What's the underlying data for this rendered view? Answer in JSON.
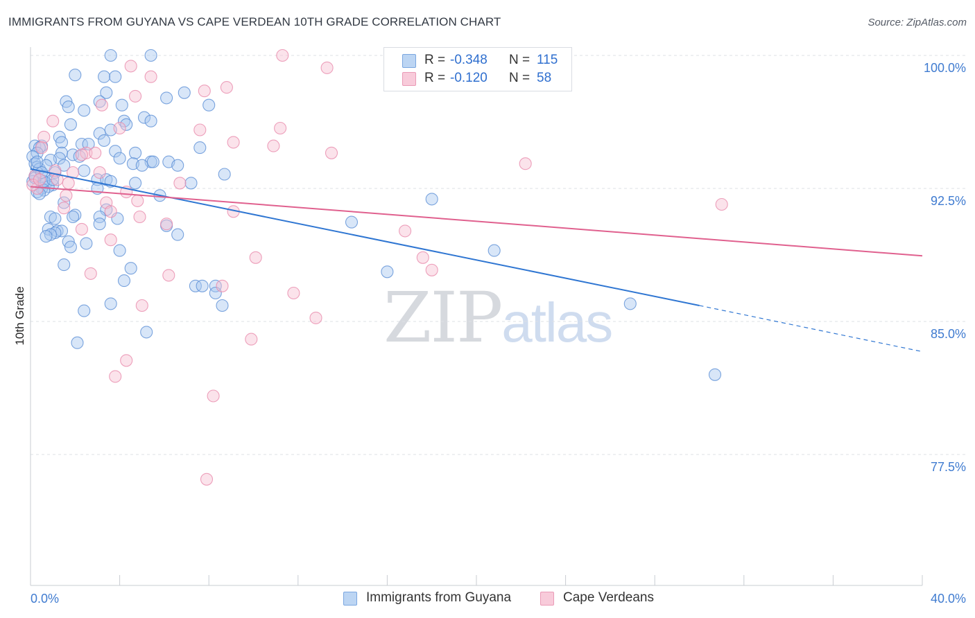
{
  "title": "IMMIGRANTS FROM GUYANA VS CAPE VERDEAN 10TH GRADE CORRELATION CHART",
  "source": "Source: ZipAtlas.com",
  "watermark": {
    "zip": "ZIP",
    "atlas": "atlas"
  },
  "legend_top": {
    "rows": [
      {
        "r_label": "R =",
        "r_value": "-0.348",
        "n_label": "N =",
        "n_value": "115"
      },
      {
        "r_label": "R =",
        "r_value": "-0.120",
        "n_label": "N =",
        "n_value": "58"
      }
    ]
  },
  "colors": {
    "blue_fill": "#a9c8f0",
    "blue_stroke": "#5b8fd6",
    "blue_line": "#2f76d2",
    "pink_fill": "#f6c1d2",
    "pink_stroke": "#e88aab",
    "pink_line": "#e0608e",
    "axis_text": "#3f7bd0",
    "grid": "#dde1e6"
  },
  "chart_data": {
    "type": "scatter",
    "title": "IMMIGRANTS FROM GUYANA VS CAPE VERDEAN 10TH GRADE CORRELATION CHART",
    "ylabel": "10th Grade",
    "xlabel": "",
    "xlim": [
      0,
      40
    ],
    "ylim": [
      70.0,
      101.0
    ],
    "x_tick_labels": [
      "0.0%",
      "40.0%"
    ],
    "y_tick_values": [
      100.0,
      92.5,
      85.0,
      77.5
    ],
    "y_tick_labels": [
      "100.0%",
      "92.5%",
      "85.0%",
      "77.5%"
    ],
    "grid": "horizontal dashed",
    "legend_position": "top-center",
    "series": [
      {
        "name": "Immigrants from Guyana",
        "color": "blue",
        "R": -0.348,
        "N": 115,
        "trend": {
          "x0": 0.0,
          "y0": 93.6,
          "x1": 30.0,
          "y1": 85.9,
          "dashed_to_x": 40.0,
          "dashed_to_y": 83.3
        },
        "points": [
          [
            3.6,
            100.0
          ],
          [
            5.4,
            100.0
          ],
          [
            2.0,
            98.9
          ],
          [
            3.3,
            98.8
          ],
          [
            3.8,
            98.8
          ],
          [
            3.4,
            97.9
          ],
          [
            6.1,
            97.6
          ],
          [
            6.9,
            97.9
          ],
          [
            1.6,
            97.4
          ],
          [
            3.1,
            97.4
          ],
          [
            4.1,
            97.2
          ],
          [
            8.0,
            97.2
          ],
          [
            1.7,
            97.1
          ],
          [
            2.4,
            96.9
          ],
          [
            5.1,
            96.5
          ],
          [
            4.2,
            96.3
          ],
          [
            5.4,
            96.3
          ],
          [
            4.3,
            96.1
          ],
          [
            1.8,
            96.1
          ],
          [
            3.6,
            95.8
          ],
          [
            3.1,
            95.6
          ],
          [
            1.3,
            95.4
          ],
          [
            3.3,
            95.2
          ],
          [
            1.4,
            95.1
          ],
          [
            2.3,
            95.0
          ],
          [
            2.6,
            95.0
          ],
          [
            0.2,
            94.9
          ],
          [
            0.5,
            94.9
          ],
          [
            0.4,
            94.8
          ],
          [
            7.6,
            94.8
          ],
          [
            3.8,
            94.6
          ],
          [
            4.7,
            94.5
          ],
          [
            1.4,
            94.5
          ],
          [
            0.3,
            94.5
          ],
          [
            0.1,
            94.3
          ],
          [
            1.9,
            94.4
          ],
          [
            4.0,
            94.2
          ],
          [
            2.2,
            94.3
          ],
          [
            1.3,
            94.2
          ],
          [
            0.9,
            94.1
          ],
          [
            5.4,
            94.0
          ],
          [
            5.5,
            94.0
          ],
          [
            4.6,
            93.9
          ],
          [
            6.2,
            94.0
          ],
          [
            1.5,
            93.8
          ],
          [
            5.0,
            93.8
          ],
          [
            6.6,
            93.8
          ],
          [
            0.2,
            93.9
          ],
          [
            0.3,
            93.7
          ],
          [
            0.4,
            93.6
          ],
          [
            2.4,
            93.5
          ],
          [
            1.1,
            93.4
          ],
          [
            8.7,
            93.3
          ],
          [
            0.6,
            93.2
          ],
          [
            0.2,
            93.2
          ],
          [
            3.0,
            93.0
          ],
          [
            3.4,
            93.0
          ],
          [
            3.6,
            92.9
          ],
          [
            0.7,
            92.8
          ],
          [
            1.0,
            92.7
          ],
          [
            4.7,
            92.8
          ],
          [
            7.2,
            92.8
          ],
          [
            0.8,
            92.6
          ],
          [
            0.5,
            92.5
          ],
          [
            3.0,
            92.5
          ],
          [
            0.6,
            92.4
          ],
          [
            0.3,
            92.3
          ],
          [
            5.8,
            92.1
          ],
          [
            18.0,
            91.9
          ],
          [
            1.5,
            91.7
          ],
          [
            3.4,
            91.3
          ],
          [
            2.0,
            91.0
          ],
          [
            1.9,
            90.9
          ],
          [
            3.1,
            90.9
          ],
          [
            0.9,
            90.9
          ],
          [
            1.1,
            90.8
          ],
          [
            3.9,
            90.8
          ],
          [
            14.4,
            90.6
          ],
          [
            3.1,
            90.5
          ],
          [
            6.1,
            90.4
          ],
          [
            0.8,
            90.2
          ],
          [
            1.2,
            90.1
          ],
          [
            1.4,
            90.1
          ],
          [
            1.1,
            90.0
          ],
          [
            0.9,
            89.9
          ],
          [
            0.7,
            89.8
          ],
          [
            6.6,
            89.9
          ],
          [
            2.5,
            89.4
          ],
          [
            1.7,
            89.5
          ],
          [
            1.8,
            89.2
          ],
          [
            4.0,
            89.0
          ],
          [
            20.8,
            89.0
          ],
          [
            1.5,
            88.2
          ],
          [
            4.5,
            88.0
          ],
          [
            16.0,
            87.8
          ],
          [
            4.2,
            87.3
          ],
          [
            7.4,
            87.0
          ],
          [
            7.7,
            87.0
          ],
          [
            8.3,
            87.0
          ],
          [
            8.3,
            86.6
          ],
          [
            3.6,
            86.0
          ],
          [
            8.6,
            85.9
          ],
          [
            26.9,
            86.0
          ],
          [
            2.4,
            85.6
          ],
          [
            5.2,
            84.4
          ],
          [
            2.1,
            83.8
          ],
          [
            30.7,
            82.0
          ],
          [
            0.1,
            92.9
          ],
          [
            0.2,
            93.1
          ],
          [
            0.4,
            92.2
          ],
          [
            0.6,
            92.9
          ],
          [
            0.7,
            93.8
          ],
          [
            1.0,
            93.0
          ],
          [
            0.5,
            93.4
          ],
          [
            0.3,
            94.0
          ]
        ]
      },
      {
        "name": "Cape Verdeans",
        "color": "pink",
        "R": -0.12,
        "N": 58,
        "trend": {
          "x0": 0.0,
          "y0": 92.6,
          "x1": 40.0,
          "y1": 88.7
        },
        "points": [
          [
            11.3,
            100.0
          ],
          [
            4.5,
            99.4
          ],
          [
            13.3,
            99.3
          ],
          [
            5.4,
            98.8
          ],
          [
            8.8,
            98.2
          ],
          [
            7.8,
            98.0
          ],
          [
            4.7,
            97.7
          ],
          [
            3.2,
            97.2
          ],
          [
            1.0,
            96.3
          ],
          [
            4.0,
            95.9
          ],
          [
            11.2,
            95.9
          ],
          [
            7.6,
            95.8
          ],
          [
            0.6,
            95.4
          ],
          [
            9.1,
            95.1
          ],
          [
            10.9,
            94.9
          ],
          [
            0.5,
            94.8
          ],
          [
            13.5,
            94.5
          ],
          [
            2.5,
            94.5
          ],
          [
            2.9,
            94.5
          ],
          [
            2.3,
            94.4
          ],
          [
            22.2,
            93.9
          ],
          [
            1.1,
            93.5
          ],
          [
            1.9,
            93.4
          ],
          [
            3.1,
            93.4
          ],
          [
            0.2,
            93.2
          ],
          [
            1.2,
            93.0
          ],
          [
            1.7,
            92.8
          ],
          [
            6.7,
            92.8
          ],
          [
            4.3,
            92.3
          ],
          [
            0.3,
            92.5
          ],
          [
            0.1,
            92.7
          ],
          [
            1.6,
            92.1
          ],
          [
            4.8,
            91.8
          ],
          [
            31.0,
            91.6
          ],
          [
            1.5,
            91.4
          ],
          [
            3.4,
            91.7
          ],
          [
            3.6,
            91.2
          ],
          [
            9.1,
            91.2
          ],
          [
            4.9,
            90.9
          ],
          [
            6.1,
            90.5
          ],
          [
            2.3,
            90.2
          ],
          [
            16.8,
            90.1
          ],
          [
            3.6,
            89.6
          ],
          [
            10.1,
            88.6
          ],
          [
            17.6,
            88.6
          ],
          [
            18.0,
            87.9
          ],
          [
            2.7,
            87.7
          ],
          [
            6.2,
            87.6
          ],
          [
            8.6,
            87.0
          ],
          [
            11.8,
            86.6
          ],
          [
            5.0,
            85.9
          ],
          [
            12.8,
            85.2
          ],
          [
            9.9,
            84.0
          ],
          [
            4.3,
            82.8
          ],
          [
            3.8,
            81.9
          ],
          [
            8.2,
            80.8
          ],
          [
            7.9,
            76.1
          ],
          [
            0.4,
            93.0
          ]
        ]
      }
    ]
  },
  "legend_bottom": {
    "items": [
      {
        "label": "Immigrants from Guyana"
      },
      {
        "label": "Cape Verdeans"
      }
    ]
  }
}
